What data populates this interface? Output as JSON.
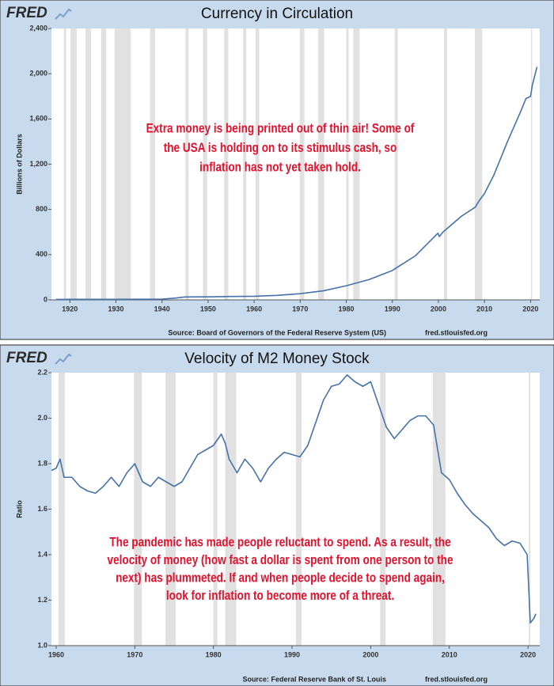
{
  "chart_data": [
    {
      "type": "line",
      "brand": "FRED",
      "title": "Currency in Circulation",
      "ylabel": "Billions of Dollars",
      "source": "Source: Board of Governors of the Federal Reserve System (US)",
      "site": "fred.stlouisfed.org",
      "annotation": [
        "Extra money is being printed out of thin air! Some of",
        "the USA is holding on to its stimulus cash, so",
        "inflation has not yet taken hold."
      ],
      "x": [
        1917,
        1920,
        1925,
        1930,
        1935,
        1940,
        1943,
        1945,
        1950,
        1955,
        1960,
        1965,
        1970,
        1975,
        1980,
        1985,
        1990,
        1995,
        1999.9,
        2000.2,
        2001,
        2005,
        2008,
        2008.9,
        2010,
        2012,
        2015,
        2018,
        2019,
        2020,
        2020.4,
        2021.4
      ],
      "values": [
        4,
        5,
        4.5,
        4.5,
        5.5,
        7,
        16,
        26,
        27,
        30,
        32,
        40,
        55,
        80,
        125,
        180,
        260,
        390,
        590,
        560,
        600,
        740,
        820,
        880,
        940,
        1100,
        1400,
        1680,
        1780,
        1800,
        1900,
        2060
      ],
      "color": "#4572a7",
      "xlim": [
        1916,
        2022
      ],
      "ylim": [
        0,
        2400
      ],
      "xticks": [
        1920,
        1930,
        1940,
        1950,
        1960,
        1970,
        1980,
        1990,
        2000,
        2010,
        2020
      ],
      "yticks": [
        0,
        400,
        800,
        {
          "value": 1200,
          "label": "1,200"
        },
        {
          "value": 1600,
          "label": "1,600"
        },
        {
          "value": 2000,
          "label": "2,000"
        },
        {
          "value": 2400,
          "label": "2,400"
        }
      ],
      "shaded_ranges": [
        [
          1918.7,
          1919.2
        ],
        [
          1920.1,
          1921.5
        ],
        [
          1923.4,
          1924.6
        ],
        [
          1926.8,
          1927.9
        ],
        [
          1929.7,
          1933.2
        ],
        [
          1937.4,
          1938.5
        ],
        [
          1945.1,
          1945.8
        ],
        [
          1948.9,
          1949.8
        ],
        [
          1953.5,
          1954.4
        ],
        [
          1957.6,
          1958.3
        ],
        [
          1960.3,
          1961.1
        ],
        [
          1969.9,
          1970.9
        ],
        [
          1973.9,
          1975.2
        ],
        [
          1980.0,
          1980.5
        ],
        [
          1981.5,
          1982.9
        ],
        [
          1990.5,
          1991.2
        ],
        [
          2001.2,
          2001.9
        ],
        [
          2007.9,
          2009.5
        ],
        [
          2020.1,
          2020.3
        ]
      ]
    },
    {
      "type": "line",
      "brand": "FRED",
      "title": "Velocity of M2 Money Stock",
      "ylabel": "Ratio",
      "source": "Source: Federal Reserve Bank of St. Louis",
      "site": "fred.stlouisfed.org",
      "annotation": [
        "The pandemic has made people reluctant to spend. As a result, the",
        "velocity of money (how fast a dollar is spent from one person to the",
        "next) has plummeted. If and when people decide to spend again,",
        "look for inflation to become more of a threat."
      ],
      "x": [
        1959.4,
        1960,
        1960.5,
        1961,
        1962,
        1963,
        1964,
        1965,
        1966,
        1967,
        1968,
        1969,
        1970,
        1971,
        1972,
        1973,
        1974,
        1975,
        1976,
        1977,
        1978,
        1979,
        1980,
        1981,
        1981.5,
        1982,
        1983,
        1984,
        1985,
        1986,
        1987,
        1988,
        1989,
        1990,
        1991,
        1992,
        1993,
        1994,
        1995,
        1996,
        1997,
        1998,
        1999,
        2000,
        2001,
        2002,
        2003,
        2004,
        2005,
        2006,
        2007,
        2008,
        2009,
        2010,
        2011,
        2012,
        2013,
        2014,
        2015,
        2016,
        2017,
        2018,
        2019,
        2019.9,
        2020.3,
        2020.75,
        2021
      ],
      "values": [
        1.77,
        1.78,
        1.82,
        1.74,
        1.74,
        1.7,
        1.68,
        1.67,
        1.7,
        1.74,
        1.7,
        1.76,
        1.8,
        1.72,
        1.7,
        1.74,
        1.72,
        1.7,
        1.72,
        1.78,
        1.84,
        1.86,
        1.88,
        1.93,
        1.89,
        1.82,
        1.76,
        1.82,
        1.78,
        1.72,
        1.78,
        1.82,
        1.85,
        1.84,
        1.83,
        1.88,
        1.98,
        2.08,
        2.14,
        2.15,
        2.19,
        2.16,
        2.14,
        2.16,
        2.06,
        1.96,
        1.91,
        1.95,
        1.99,
        2.01,
        2.01,
        1.97,
        1.76,
        1.73,
        1.67,
        1.62,
        1.58,
        1.55,
        1.52,
        1.47,
        1.44,
        1.46,
        1.45,
        1.4,
        1.1,
        1.12,
        1.14
      ],
      "color": "#4572a7",
      "xlim": [
        1959.4,
        2021.5
      ],
      "ylim": [
        1.0,
        2.2
      ],
      "xticks": [
        1960,
        1970,
        1980,
        1990,
        2000,
        2010,
        2020
      ],
      "yticks": [
        {
          "value": 1.0,
          "label": "1.0"
        },
        1.2,
        1.4,
        1.6,
        1.8,
        {
          "value": 2.0,
          "label": "2.0"
        },
        2.2
      ],
      "shaded_ranges": [
        [
          1960.3,
          1961.1
        ],
        [
          1969.9,
          1970.9
        ],
        [
          1973.9,
          1975.2
        ],
        [
          1980.0,
          1980.5
        ],
        [
          1981.5,
          1982.9
        ],
        [
          1990.5,
          1991.2
        ],
        [
          2001.2,
          2001.9
        ],
        [
          2007.9,
          2009.5
        ],
        [
          2020.1,
          2020.3
        ]
      ]
    }
  ]
}
